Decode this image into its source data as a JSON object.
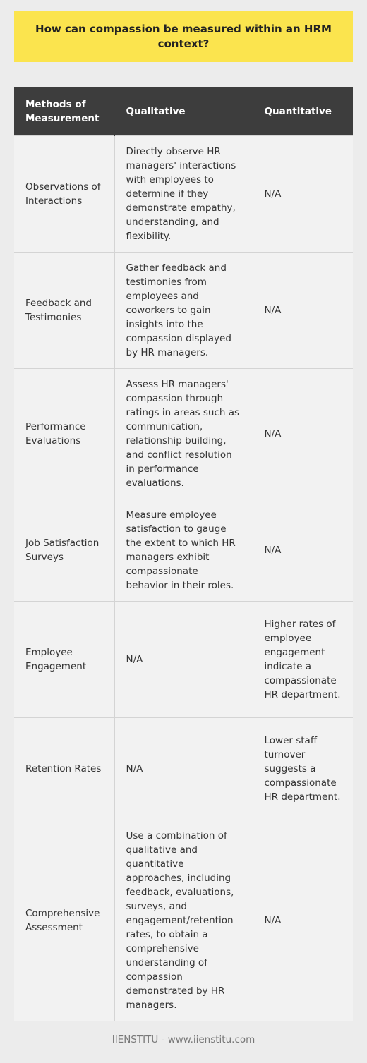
{
  "title": "How can compassion be measured within an HRM context?",
  "table": {
    "headers": [
      "Methods of Measurement",
      "Qualitative",
      "Quantitative"
    ],
    "rows": [
      {
        "method": "Observations of Interactions",
        "qualitative": "Directly observe HR managers' interactions with employees to determine if they demonstrate empathy, understanding, and flexibility.",
        "quantitative": "N/A"
      },
      {
        "method": "Feedback and Testimonies",
        "qualitative": "Gather feedback and testimonies from employees and coworkers to gain insights into the compassion displayed by HR managers.",
        "quantitative": "N/A"
      },
      {
        "method": "Performance Evaluations",
        "qualitative": "Assess HR managers' compassion through ratings in areas such as communication, relationship building, and conflict resolution in performance evaluations.",
        "quantitative": "N/A"
      },
      {
        "method": "Job Satisfaction Surveys",
        "qualitative": "Measure employee satisfaction to gauge the extent to which HR managers exhibit compassionate behavior in their roles.",
        "quantitative": "N/A"
      },
      {
        "method": "Employee Engagement",
        "qualitative": "N/A",
        "quantitative": "Higher rates of employee engagement indicate a compassionate HR department."
      },
      {
        "method": "Retention Rates",
        "qualitative": "N/A",
        "quantitative": "Lower staff turnover suggests a compassionate HR department."
      },
      {
        "method": "Comprehensive Assessment",
        "qualitative": "Use a combination of qualitative and quantitative approaches, including feedback, evaluations, surveys, and engagement/retention rates, to obtain a comprehensive understanding of compassion demonstrated by HR managers.",
        "quantitative": "N/A"
      }
    ]
  },
  "footer": "IIENSTITU - www.iienstitu.com",
  "colors": {
    "title_bg": "#fbe44e",
    "header_bg": "#3d3d3d",
    "cell_bg": "#f2f2f2",
    "page_bg": "#ececec"
  }
}
